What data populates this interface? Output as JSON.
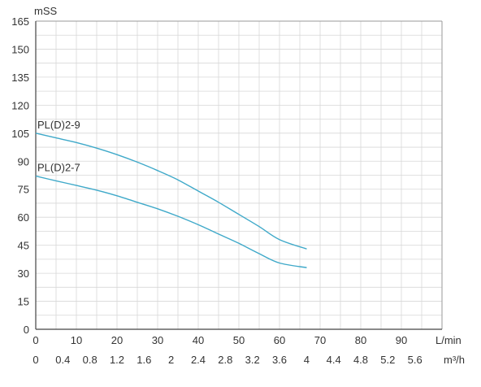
{
  "chart_data": {
    "type": "line",
    "title": "",
    "ylabel": "mSS",
    "xlabel_top": "L/min",
    "xlabel_bottom": "m³/h",
    "ylim": [
      0,
      165
    ],
    "y_ticks": [
      "0",
      "15",
      "30",
      "45",
      "60",
      "75",
      "90",
      "105",
      "120",
      "135",
      "150",
      "165"
    ],
    "x_lmin_ticks": [
      "0",
      "10",
      "20",
      "30",
      "40",
      "50",
      "60",
      "70",
      "80",
      "90"
    ],
    "x_m3h_ticks": [
      "0",
      "0.4",
      "0.8",
      "1.2",
      "1.6",
      "2",
      "2.4",
      "2.8",
      "3.2",
      "3.6",
      "4",
      "4.4",
      "4.8",
      "5.2",
      "5.6"
    ],
    "xlim_lmin": [
      0,
      100
    ],
    "grid": true,
    "line_color": "#3fa9c9",
    "series": [
      {
        "name": "PL(D)2-9",
        "x": [
          0,
          5,
          10,
          15,
          20,
          25,
          30,
          35,
          40,
          45,
          50,
          55,
          60,
          66.7
        ],
        "values": [
          105,
          102.5,
          100,
          97,
          93.5,
          89.5,
          85,
          80,
          74,
          68,
          61.5,
          55,
          48,
          43
        ]
      },
      {
        "name": "PL(D)2-7",
        "x": [
          0,
          5,
          10,
          15,
          20,
          25,
          30,
          35,
          40,
          45,
          50,
          55,
          60,
          66.7
        ],
        "values": [
          82,
          79.5,
          77,
          74.5,
          71.5,
          68,
          64.5,
          60.5,
          56,
          51,
          46,
          40.5,
          35.5,
          33
        ]
      }
    ]
  }
}
